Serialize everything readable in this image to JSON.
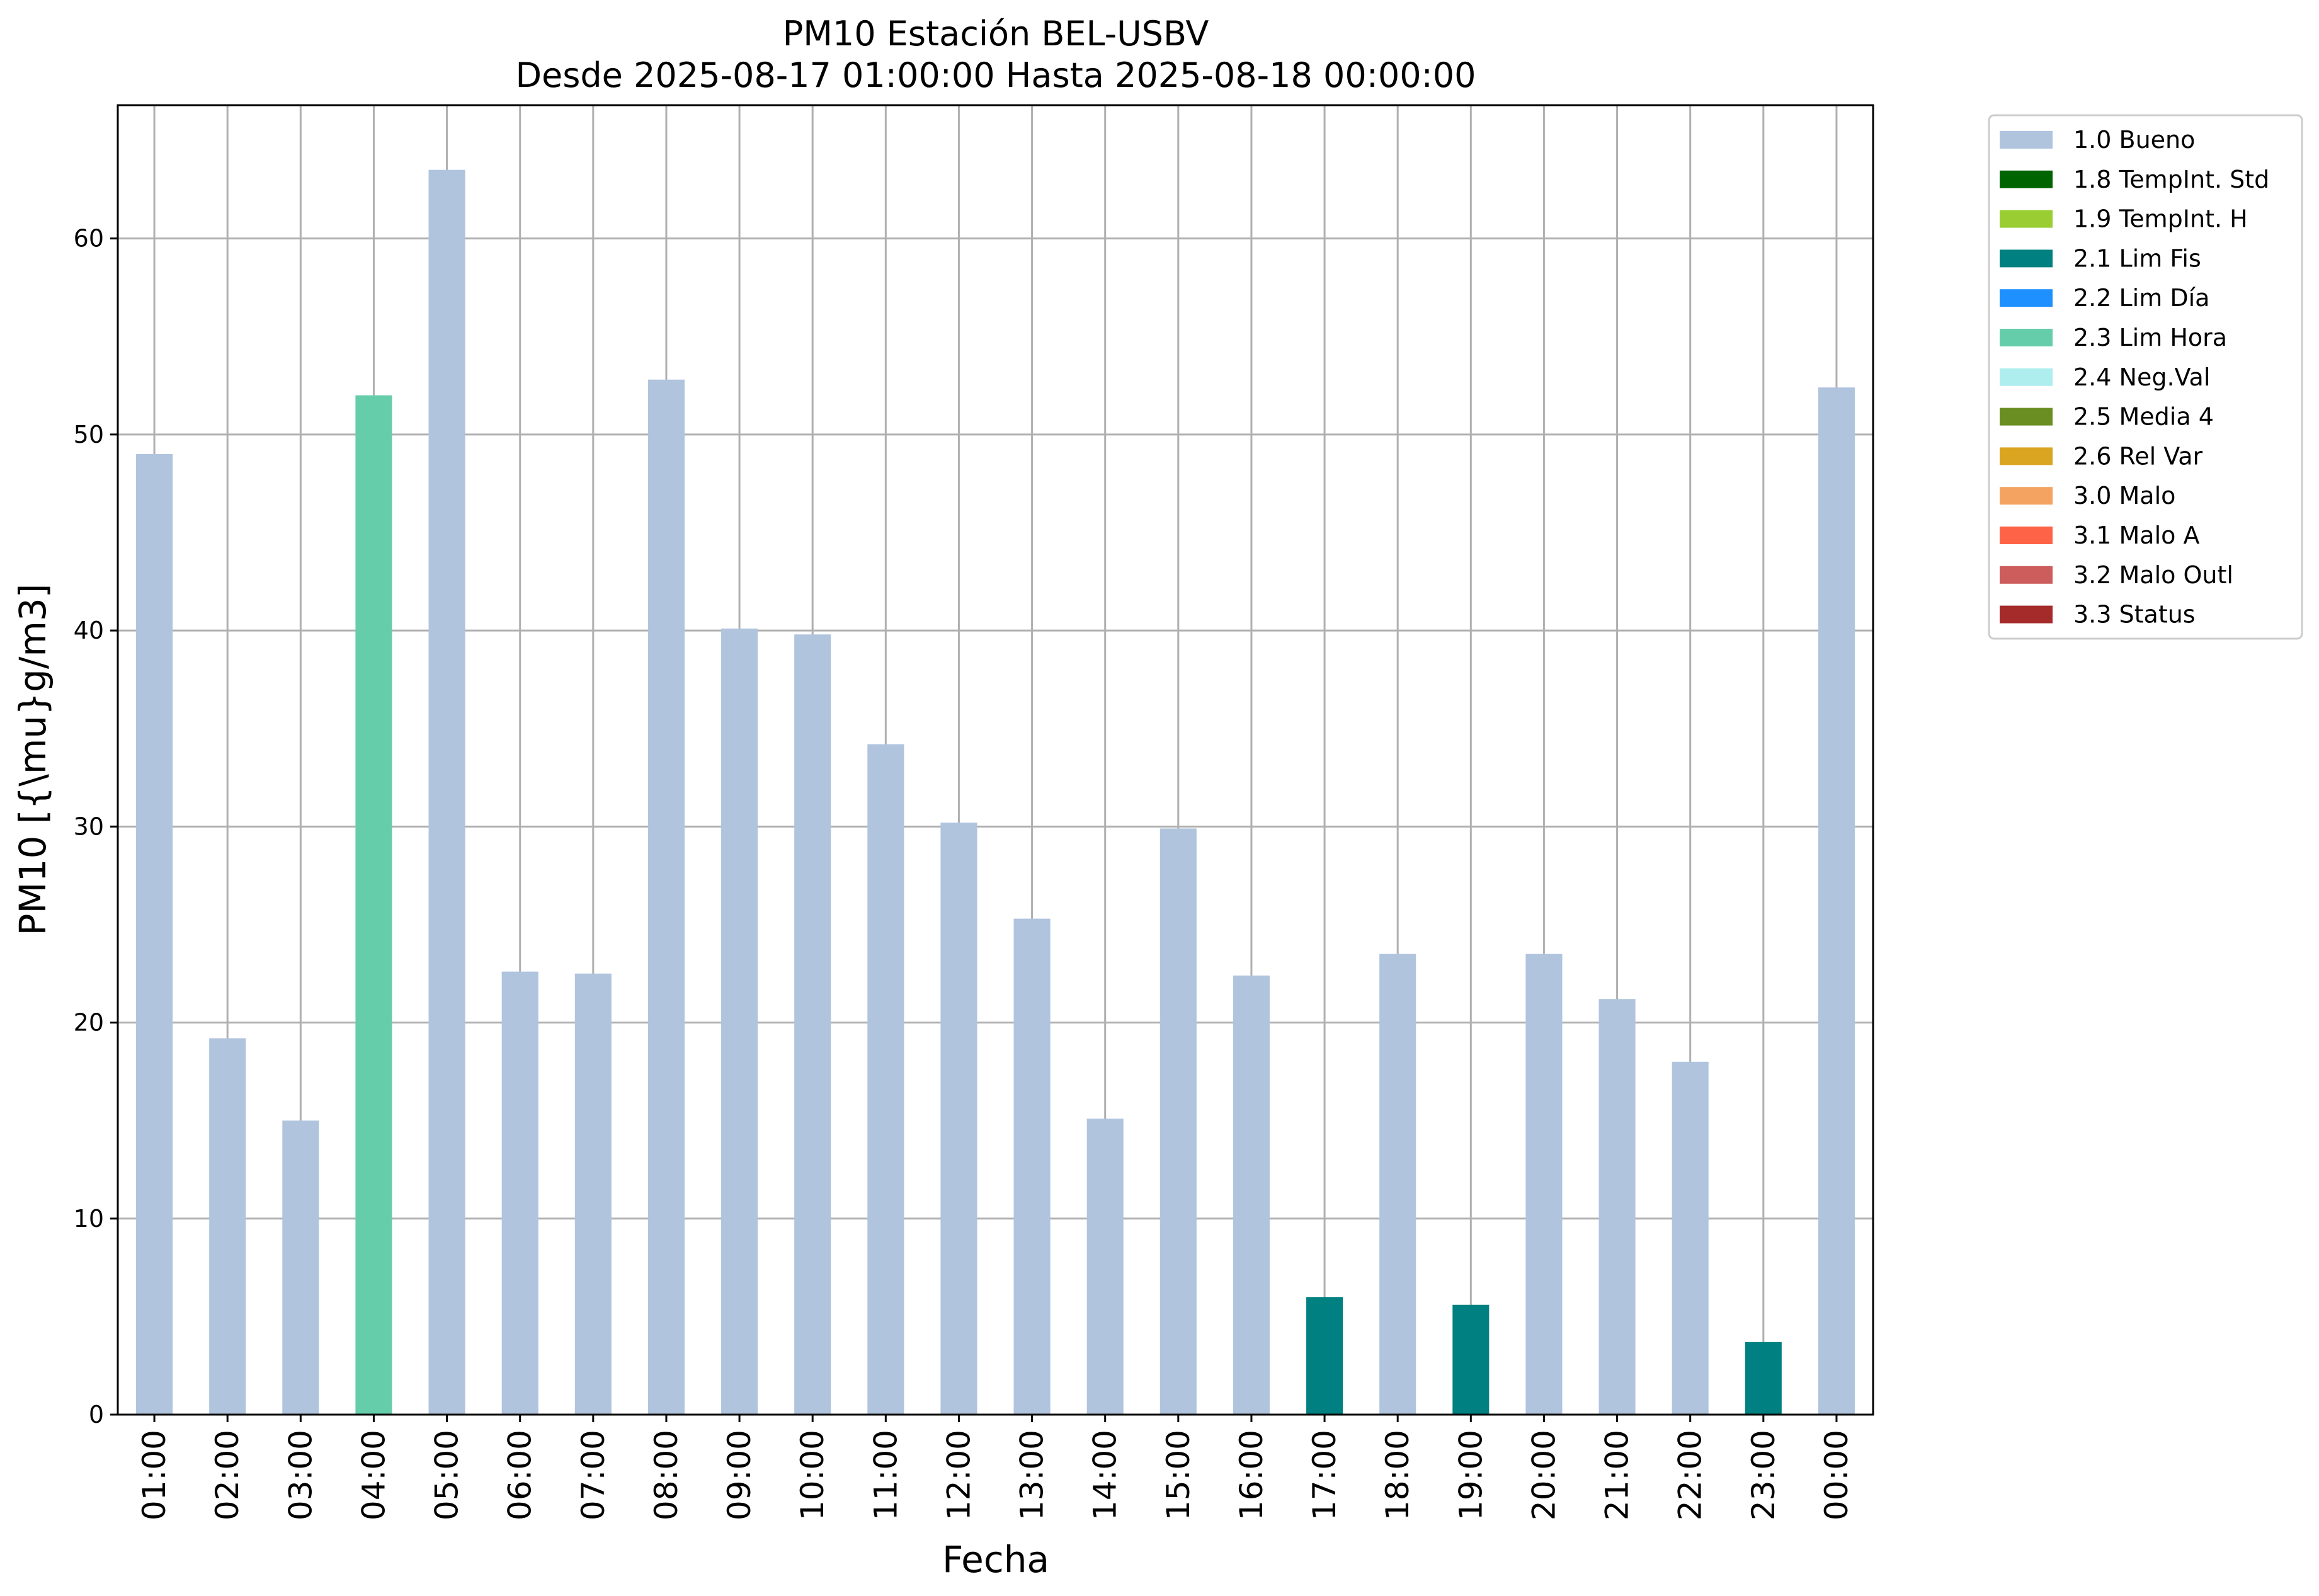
{
  "chart_data": {
    "type": "bar",
    "title": "PM10 Estación BEL-USBV",
    "subtitle": "Desde 2025-08-17 01:00:00 Hasta 2025-08-18 00:00:00",
    "xlabel": "Fecha",
    "ylabel": "PM10 [{\\mu}g/m3]",
    "ylim": [
      0,
      66.8
    ],
    "yticks": [
      0,
      10,
      20,
      30,
      40,
      50,
      60
    ],
    "grid": true,
    "legend_position": "outside-top-right",
    "categories": [
      "01:00",
      "02:00",
      "03:00",
      "04:00",
      "05:00",
      "06:00",
      "07:00",
      "08:00",
      "09:00",
      "10:00",
      "11:00",
      "12:00",
      "13:00",
      "14:00",
      "15:00",
      "16:00",
      "17:00",
      "18:00",
      "19:00",
      "20:00",
      "21:00",
      "22:00",
      "23:00",
      "00:00"
    ],
    "values": [
      49.0,
      19.2,
      15.0,
      52.0,
      63.5,
      22.6,
      22.5,
      52.8,
      40.1,
      39.8,
      34.2,
      30.2,
      25.3,
      15.1,
      29.9,
      22.4,
      6.0,
      23.5,
      5.6,
      23.5,
      21.2,
      18.0,
      3.7,
      52.4
    ],
    "flags": [
      "1.0 Bueno",
      "1.0 Bueno",
      "1.0 Bueno",
      "2.3 Lim Hora",
      "1.0 Bueno",
      "1.0 Bueno",
      "1.0 Bueno",
      "1.0 Bueno",
      "1.0 Bueno",
      "1.0 Bueno",
      "1.0 Bueno",
      "1.0 Bueno",
      "1.0 Bueno",
      "1.0 Bueno",
      "1.0 Bueno",
      "1.0 Bueno",
      "2.1 Lim Fis",
      "1.0 Bueno",
      "2.1 Lim Fis",
      "1.0 Bueno",
      "1.0 Bueno",
      "1.0 Bueno",
      "2.1 Lim Fis",
      "1.0 Bueno"
    ],
    "legend": [
      {
        "label": "1.0 Bueno",
        "color": "#b0c4de"
      },
      {
        "label": "1.8 TempInt. Std",
        "color": "#006400"
      },
      {
        "label": "1.9 TempInt. H",
        "color": "#9acd32"
      },
      {
        "label": "2.1 Lim Fis",
        "color": "#008080"
      },
      {
        "label": "2.2 Lim Día",
        "color": "#1e90ff"
      },
      {
        "label": "2.3 Lim Hora",
        "color": "#66cdaa"
      },
      {
        "label": "2.4 Neg.Val",
        "color": "#afeeee"
      },
      {
        "label": "2.5 Media 4",
        "color": "#6b8e23"
      },
      {
        "label": "2.6 Rel Var",
        "color": "#daa520"
      },
      {
        "label": "3.0 Malo",
        "color": "#f4a460"
      },
      {
        "label": "3.1 Malo A",
        "color": "#ff6347"
      },
      {
        "label": "3.2 Malo Outl",
        "color": "#cd5c5c"
      },
      {
        "label": "3.3 Status",
        "color": "#a52a2a"
      }
    ]
  }
}
